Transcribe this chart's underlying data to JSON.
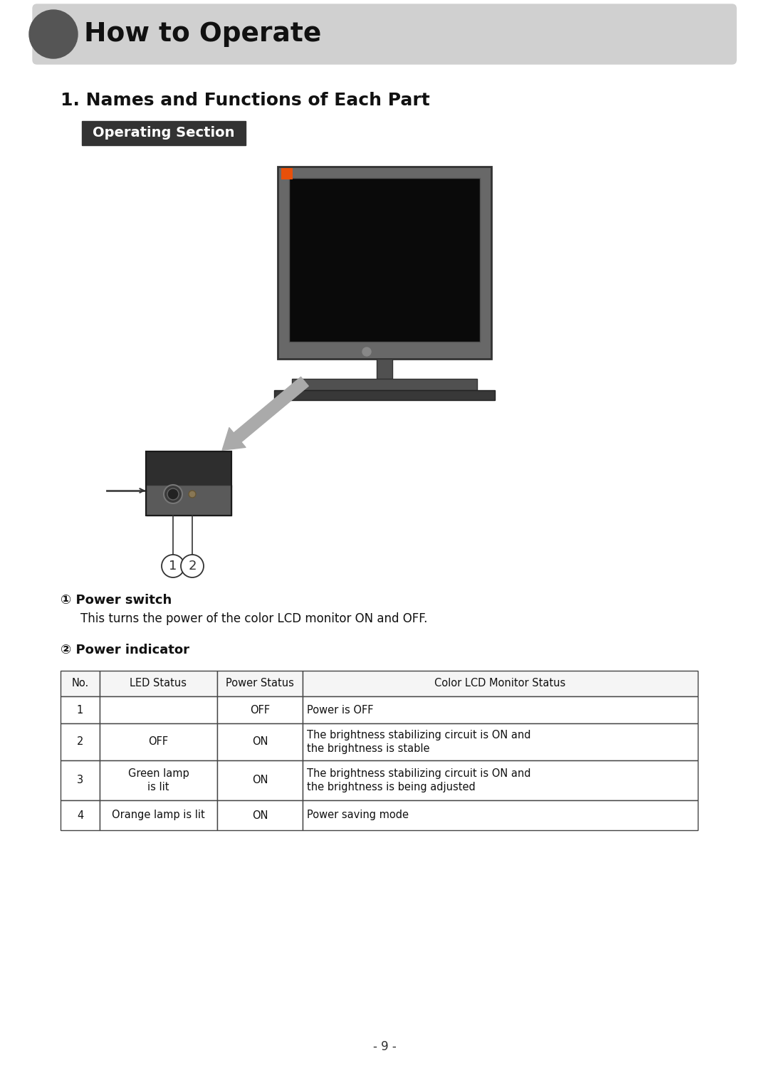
{
  "title": "How to Operate",
  "subtitle": "1. Names and Functions of Each Part",
  "section_label": "Operating Section",
  "item1_title": "① Power switch",
  "item1_desc": "This turns the power of the color LCD monitor ON and OFF.",
  "item2_title": "② Power indicator",
  "table_headers": [
    "No.",
    "LED Status",
    "Power Status",
    "Color LCD Monitor Status"
  ],
  "table_rows": [
    [
      "1",
      "",
      "OFF",
      "Power is OFF"
    ],
    [
      "2",
      "OFF",
      "ON",
      "The brightness stabilizing circuit is ON and\nthe brightness is stable"
    ],
    [
      "3",
      "Green lamp\nis lit",
      "ON",
      "The brightness stabilizing circuit is ON and\nthe brightness is being adjusted"
    ],
    [
      "4",
      "Orange lamp is lit",
      "ON",
      "Power saving mode"
    ]
  ],
  "page_number": "- 9 -",
  "bg_color": "#ffffff",
  "header_bg": "#d0d0d0",
  "header_circle_color": "#555555",
  "section_label_bg": "#333333",
  "section_label_color": "#ffffff",
  "monitor_frame_color": "#686868",
  "monitor_screen_color": "#0a0a0a",
  "monitor_base_color": "#484848",
  "arrow_color": "#aaaaaa",
  "kodak_orange": "#e8500a",
  "table_border_color": "#444444"
}
